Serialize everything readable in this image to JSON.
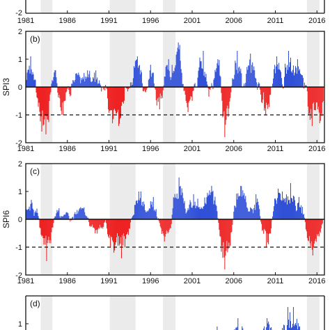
{
  "x_ticks": [
    "1981",
    "1986",
    "1991",
    "1996",
    "2001",
    "2006",
    "2011",
    "2016"
  ],
  "colors": {
    "positive": "#3050d8",
    "negative": "#ee2222",
    "shade": "#ebebeb",
    "frame": "#111111",
    "threshold": "#111111"
  },
  "chart_data": [
    {
      "id": "a",
      "type": "bar",
      "visible": "bottom edge only",
      "xlim": [
        1981,
        2016.9
      ],
      "ylim": [
        -2,
        2
      ],
      "yticks": [
        "-2"
      ],
      "xticks": [
        "1981",
        "1986",
        "1991",
        "1996",
        "2001",
        "2006",
        "2011",
        "2016"
      ],
      "shaded_periods": [
        [
          1982.8,
          1984.2
        ],
        [
          1991.1,
          1994.2
        ],
        [
          1997.5,
          1999.0
        ],
        [
          2014.8,
          2016.3
        ]
      ]
    },
    {
      "id": "b",
      "type": "bar",
      "panel_label": "(b)",
      "ylabel": "SPI3",
      "xlim": [
        1981,
        2016.9
      ],
      "ylim": [
        -2,
        2
      ],
      "yticks": [
        "-2",
        "-1",
        "0",
        "1",
        "2"
      ],
      "threshold": -1,
      "grid": false,
      "xticks": [
        "1981",
        "1986",
        "1991",
        "1996",
        "2001",
        "2006",
        "2011",
        "2016"
      ],
      "shaded_periods": [
        [
          1982.8,
          1984.2
        ],
        [
          1991.1,
          1994.2
        ],
        [
          1997.5,
          1999.0
        ],
        [
          2014.8,
          2016.3
        ]
      ],
      "monthly_extremes": [
        {
          "date": "1981.6",
          "spi": 1.1
        },
        {
          "date": "1982.9",
          "spi": -1.6
        },
        {
          "date": "1983.4",
          "spi": -1.7
        },
        {
          "date": "1984.5",
          "spi": 0.6
        },
        {
          "date": "1985.3",
          "spi": -1.0
        },
        {
          "date": "1987.1",
          "spi": 0.5
        },
        {
          "date": "1988.4",
          "spi": 0.6
        },
        {
          "date": "1989.4",
          "spi": 0.6
        },
        {
          "date": "1991.4",
          "spi": -1.3
        },
        {
          "date": "1992.2",
          "spi": -1.4
        },
        {
          "date": "1994.4",
          "spi": 1.1
        },
        {
          "date": "1996.0",
          "spi": 0.8
        },
        {
          "date": "1997.1",
          "spi": -0.8
        },
        {
          "date": "1998.2",
          "spi": 1.0
        },
        {
          "date": "1999.3",
          "spi": 1.6
        },
        {
          "date": "2000.5",
          "spi": -0.9
        },
        {
          "date": "2002.3",
          "spi": 1.3
        },
        {
          "date": "2004.1",
          "spi": 1.0
        },
        {
          "date": "2004.9",
          "spi": -1.8
        },
        {
          "date": "2006.4",
          "spi": 1.3
        },
        {
          "date": "2008.0",
          "spi": 1.2
        },
        {
          "date": "2009.8",
          "spi": -1.0
        },
        {
          "date": "2011.2",
          "spi": 1.1
        },
        {
          "date": "2012.6",
          "spi": 1.3
        },
        {
          "date": "2013.7",
          "spi": 1.0
        },
        {
          "date": "2015.4",
          "spi": -1.4
        },
        {
          "date": "2016.3",
          "spi": -1.3
        }
      ]
    },
    {
      "id": "c",
      "type": "bar",
      "panel_label": "(c)",
      "ylabel": "SPI6",
      "xlim": [
        1981,
        2016.9
      ],
      "ylim": [
        -2,
        2
      ],
      "yticks": [
        "-2",
        "-1",
        "0",
        "1",
        "2"
      ],
      "threshold": -1,
      "grid": false,
      "xticks": [
        "1981",
        "1986",
        "1991",
        "1996",
        "2001",
        "2006",
        "2011",
        "2016"
      ],
      "shaded_periods": [
        [
          1982.8,
          1984.2
        ],
        [
          1991.1,
          1994.2
        ],
        [
          1997.5,
          1999.0
        ],
        [
          2014.8,
          2016.3
        ]
      ],
      "monthly_extremes": [
        {
          "date": "1981.7",
          "spi": 0.7
        },
        {
          "date": "1983.5",
          "spi": -1.5
        },
        {
          "date": "1985.0",
          "spi": 0.4
        },
        {
          "date": "1987.5",
          "spi": 0.4
        },
        {
          "date": "1989.3",
          "spi": -0.5
        },
        {
          "date": "1991.6",
          "spi": -1.2
        },
        {
          "date": "1992.5",
          "spi": -1.4
        },
        {
          "date": "1994.8",
          "spi": 1.0
        },
        {
          "date": "1996.3",
          "spi": 0.8
        },
        {
          "date": "1997.7",
          "spi": -0.8
        },
        {
          "date": "1999.4",
          "spi": 1.5
        },
        {
          "date": "2001.2",
          "spi": 0.9
        },
        {
          "date": "2003.3",
          "spi": 1.2
        },
        {
          "date": "2004.9",
          "spi": -1.8
        },
        {
          "date": "2006.8",
          "spi": 1.2
        },
        {
          "date": "2008.7",
          "spi": 0.9
        },
        {
          "date": "2009.9",
          "spi": -1.0
        },
        {
          "date": "2011.3",
          "spi": 1.1
        },
        {
          "date": "2012.8",
          "spi": 1.3
        },
        {
          "date": "2013.8",
          "spi": 0.8
        },
        {
          "date": "2015.5",
          "spi": -1.3
        }
      ]
    },
    {
      "id": "d",
      "type": "bar",
      "panel_label": "(d)",
      "visible": "top portion only",
      "xlim": [
        1981,
        2016.9
      ],
      "ylim": [
        -2,
        2
      ],
      "yticks": [
        "1"
      ],
      "shaded_periods": [
        [
          1982.8,
          1984.2
        ],
        [
          1991.1,
          1994.2
        ],
        [
          1997.5,
          1999.0
        ],
        [
          2014.8,
          2016.3
        ]
      ],
      "monthly_extremes": [
        {
          "date": "2004.0",
          "spi": 0.9
        },
        {
          "date": "2006.5",
          "spi": 1.2
        },
        {
          "date": "2010.0",
          "spi": 1.2
        },
        {
          "date": "2012.5",
          "spi": 1.6
        },
        {
          "date": "2013.2",
          "spi": 1.6
        }
      ]
    }
  ]
}
